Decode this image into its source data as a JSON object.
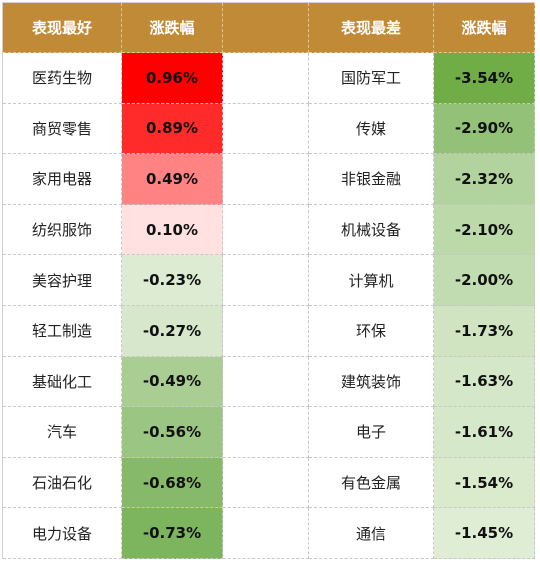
{
  "headers": {
    "best": "表现最好",
    "best_change": "涨跌幅",
    "worst": "表现最差",
    "worst_change": "涨跌幅"
  },
  "best": [
    {
      "name": "医药生物",
      "change": "0.96%",
      "color": "#ff0000"
    },
    {
      "name": "商贸零售",
      "change": "0.89%",
      "color": "#ff2a2a"
    },
    {
      "name": "家用电器",
      "change": "0.49%",
      "color": "#ff8383"
    },
    {
      "name": "纺织服饰",
      "change": "0.10%",
      "color": "#ffe1e1"
    },
    {
      "name": "美容护理",
      "change": "-0.23%",
      "color": "#dcebd2"
    },
    {
      "name": "轻工制造",
      "change": "-0.27%",
      "color": "#d6e7cb"
    },
    {
      "name": "基础化工",
      "change": "-0.49%",
      "color": "#a9cd92"
    },
    {
      "name": "汽车",
      "change": "-0.56%",
      "color": "#9bc582"
    },
    {
      "name": "石油石化",
      "change": "-0.68%",
      "color": "#86b96a"
    },
    {
      "name": "电力设备",
      "change": "-0.73%",
      "color": "#7db55f"
    }
  ],
  "worst": [
    {
      "name": "国防军工",
      "change": "-3.54%",
      "color": "#70ad47"
    },
    {
      "name": "传媒",
      "change": "-2.90%",
      "color": "#92c177"
    },
    {
      "name": "非银金融",
      "change": "-2.32%",
      "color": "#b2d39e"
    },
    {
      "name": "机械设备",
      "change": "-2.10%",
      "color": "#bcd9aa"
    },
    {
      "name": "计算机",
      "change": "-2.00%",
      "color": "#c2dcb1"
    },
    {
      "name": "环保",
      "change": "-1.73%",
      "color": "#d0e4c2"
    },
    {
      "name": "建筑装饰",
      "change": "-1.63%",
      "color": "#d4e7c8"
    },
    {
      "name": "电子",
      "change": "-1.61%",
      "color": "#d6e8ca"
    },
    {
      "name": "有色金属",
      "change": "-1.54%",
      "color": "#d9eacd"
    },
    {
      "name": "通信",
      "change": "-1.45%",
      "color": "#dfedd5"
    }
  ],
  "colors": {
    "header_bg": "#c08a36",
    "header_text": "#ffffff"
  }
}
